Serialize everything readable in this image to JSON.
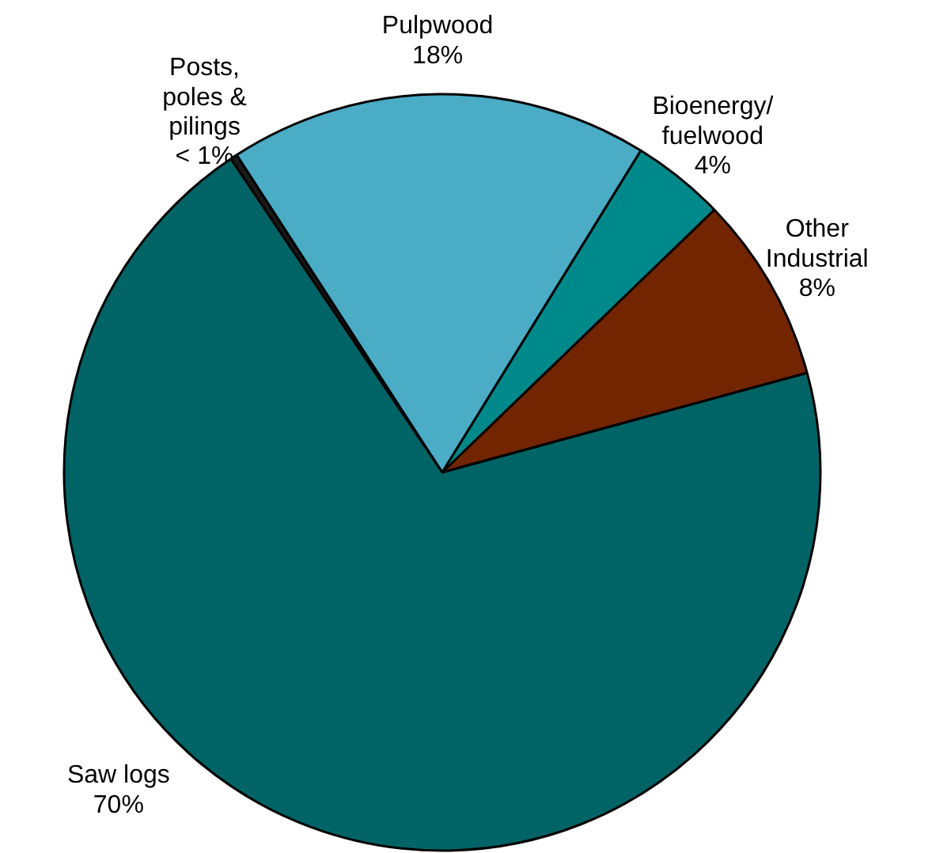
{
  "chart_data": {
    "type": "pie",
    "categories": [
      "Posts, poles & pilings",
      "Pulpwood",
      "Bioenergy/fuelwood",
      "Other Industrial",
      "Saw logs"
    ],
    "values": [
      0.3,
      18,
      4,
      8,
      70
    ],
    "value_labels": [
      "< 1%",
      "18%",
      "4%",
      "8%",
      "70%"
    ],
    "colors": [
      "#1a1a1a",
      "#4bacc6",
      "#00898a",
      "#722500",
      "#006466"
    ]
  }
}
